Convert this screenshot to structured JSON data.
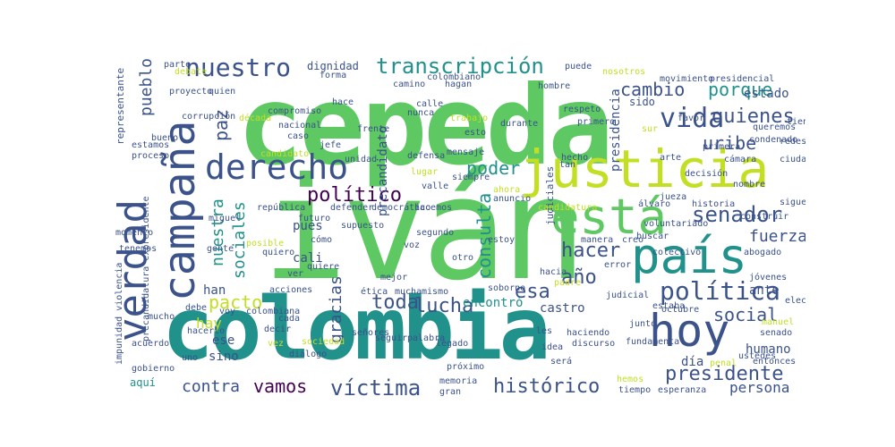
{
  "words": [
    {
      "text": "cepeda"
    },
    {
      "text": "iván"
    },
    {
      "text": "colombia"
    },
    {
      "text": "justicia"
    },
    {
      "text": "está"
    },
    {
      "text": "país"
    },
    {
      "text": "hoy"
    },
    {
      "text": "verdad"
    },
    {
      "text": "campaña"
    },
    {
      "text": "derecho"
    },
    {
      "text": "nuestro"
    },
    {
      "text": "transcripción"
    },
    {
      "text": "cambio"
    },
    {
      "text": "porque"
    },
    {
      "text": "vida"
    },
    {
      "text": "quienes"
    },
    {
      "text": "uribe"
    },
    {
      "text": "senador"
    },
    {
      "text": "fuerza"
    },
    {
      "text": "política"
    },
    {
      "text": "social"
    },
    {
      "text": "político"
    },
    {
      "text": "poder"
    },
    {
      "text": "hacer"
    },
    {
      "text": "año"
    },
    {
      "text": "esa"
    },
    {
      "text": "toda"
    },
    {
      "text": "lucha"
    },
    {
      "text": "pacto"
    },
    {
      "text": "presidente"
    },
    {
      "text": "histórico"
    },
    {
      "text": "víctima"
    },
    {
      "text": "vamos"
    },
    {
      "text": "contra"
    },
    {
      "text": "persona"
    },
    {
      "text": "castro"
    },
    {
      "text": "encontró"
    },
    {
      "text": "hay"
    },
    {
      "text": "han"
    },
    {
      "text": "cali"
    },
    {
      "text": "pues"
    },
    {
      "text": "estado"
    },
    {
      "text": "sido"
    },
    {
      "text": "dignidad"
    },
    {
      "text": "humano"
    },
    {
      "text": "día"
    },
    {
      "text": "ante"
    },
    {
      "text": "sino"
    },
    {
      "text": "ese"
    },
    {
      "text": "aquí"
    },
    {
      "text": "paz"
    },
    {
      "text": "pueblo"
    },
    {
      "text": "nuestra"
    },
    {
      "text": "sociales"
    },
    {
      "text": "consulta"
    },
    {
      "text": "gracias"
    },
    {
      "text": "precandidato"
    },
    {
      "text": "presidencia"
    },
    {
      "text": "representante"
    },
    {
      "text": "precandidatura expresidente"
    },
    {
      "text": "impunidad violencia"
    },
    {
      "text": "judiciales"
    },
    {
      "text": "parte"
    },
    {
      "text": "camino"
    },
    {
      "text": "colombiano"
    },
    {
      "text": "hagan"
    },
    {
      "text": "puede"
    },
    {
      "text": "hombre"
    },
    {
      "text": "movimiento"
    },
    {
      "text": "presidencial"
    },
    {
      "text": "queremos"
    },
    {
      "text": "condenado"
    },
    {
      "text": "favor"
    },
    {
      "text": "redes"
    },
    {
      "text": "ciudad"
    },
    {
      "text": "cámara"
    },
    {
      "text": "nombre"
    },
    {
      "text": "historia"
    },
    {
      "text": "construir"
    },
    {
      "text": "abogado"
    },
    {
      "text": "jóvenes"
    },
    {
      "text": "senado"
    },
    {
      "text": "ustedes"
    },
    {
      "text": "entonces"
    },
    {
      "text": "octubre"
    },
    {
      "text": "discurso"
    },
    {
      "text": "esperanza"
    },
    {
      "text": "tiempo"
    },
    {
      "text": "memoria"
    },
    {
      "text": "gran"
    },
    {
      "text": "gobierno"
    },
    {
      "text": "acuerdo"
    },
    {
      "text": "mucho"
    },
    {
      "text": "debe"
    },
    {
      "text": "tenemos"
    },
    {
      "text": "momento"
    },
    {
      "text": "estamos"
    },
    {
      "text": "bueno"
    },
    {
      "text": "quien"
    },
    {
      "text": "nacional"
    },
    {
      "text": "caso"
    },
    {
      "text": "jefe"
    },
    {
      "text": "unidad"
    },
    {
      "text": "compromiso"
    },
    {
      "text": "hace"
    },
    {
      "text": "calle"
    },
    {
      "text": "nunca"
    },
    {
      "text": "frente"
    },
    {
      "text": "defensa"
    },
    {
      "text": "mensaje"
    },
    {
      "text": "esto"
    },
    {
      "text": "siempre"
    },
    {
      "text": "valle"
    },
    {
      "text": "hacemos"
    },
    {
      "text": "democrático"
    },
    {
      "text": "defender"
    },
    {
      "text": "república"
    },
    {
      "text": "futuro"
    },
    {
      "text": "supuesto"
    },
    {
      "text": "segundo"
    },
    {
      "text": "voz"
    },
    {
      "text": "cómo"
    },
    {
      "text": "quiere"
    },
    {
      "text": "acciones"
    },
    {
      "text": "colombiana"
    },
    {
      "text": "cada"
    },
    {
      "text": "decir"
    },
    {
      "text": "mejor"
    },
    {
      "text": "ética"
    },
    {
      "text": "mucha"
    },
    {
      "text": "mismo"
    },
    {
      "text": "soborno"
    },
    {
      "text": "otro"
    },
    {
      "text": "estoy"
    },
    {
      "text": "hacia"
    },
    {
      "text": "error"
    },
    {
      "text": "manera"
    },
    {
      "text": "creo"
    },
    {
      "text": "álvaro"
    },
    {
      "text": "jueza"
    },
    {
      "text": "arte"
    },
    {
      "text": "hecho"
    },
    {
      "text": "primero"
    },
    {
      "text": "respeto"
    },
    {
      "text": "durante"
    },
    {
      "text": "judicial"
    },
    {
      "text": "junto"
    },
    {
      "text": "haciendo"
    },
    {
      "text": "idea"
    },
    {
      "text": "les"
    },
    {
      "text": "será"
    },
    {
      "text": "seguir"
    },
    {
      "text": "legado"
    },
    {
      "text": "próximo"
    },
    {
      "text": "diálogo"
    },
    {
      "text": "uno"
    },
    {
      "text": "hacerlo"
    },
    {
      "text": "proceso"
    },
    {
      "text": "debate"
    },
    {
      "text": "candidato"
    },
    {
      "text": "lugar"
    },
    {
      "text": "ahora"
    },
    {
      "text": "candidatura"
    },
    {
      "text": "nosotros"
    },
    {
      "text": "sur"
    },
    {
      "text": "hemos"
    },
    {
      "text": "penal"
    },
    {
      "text": "manuel"
    },
    {
      "text": "sigue"
    },
    {
      "text": "tiene"
    },
    {
      "text": "estaba"
    },
    {
      "text": "vez"
    },
    {
      "text": "voy"
    },
    {
      "text": "gente"
    },
    {
      "text": "posible"
    },
    {
      "text": "quiero"
    },
    {
      "text": "ver"
    },
    {
      "text": "miguel"
    },
    {
      "text": "señores"
    },
    {
      "text": "palabra"
    },
    {
      "text": "padre"
    },
    {
      "text": "fundamental"
    },
    {
      "text": "electoral"
    },
    {
      "text": "voluntariado"
    },
    {
      "text": "colectivo"
    },
    {
      "text": "decisión"
    },
    {
      "text": "primera"
    },
    {
      "text": "corrupción"
    },
    {
      "text": "proyecto"
    },
    {
      "text": "forma"
    },
    {
      "text": "década"
    },
    {
      "text": "trabajo"
    },
    {
      "text": "anuncio"
    },
    {
      "text": "tan"
    },
    {
      "text": "buscar"
    },
    {
      "text": "sociedad"
    }
  ],
  "palette": {
    "background": "#ffffff",
    "green": "#5ec962",
    "teal": "#21918c",
    "blue": "#3b528b",
    "yellow": "#c2df23",
    "purple": "#440154"
  }
}
